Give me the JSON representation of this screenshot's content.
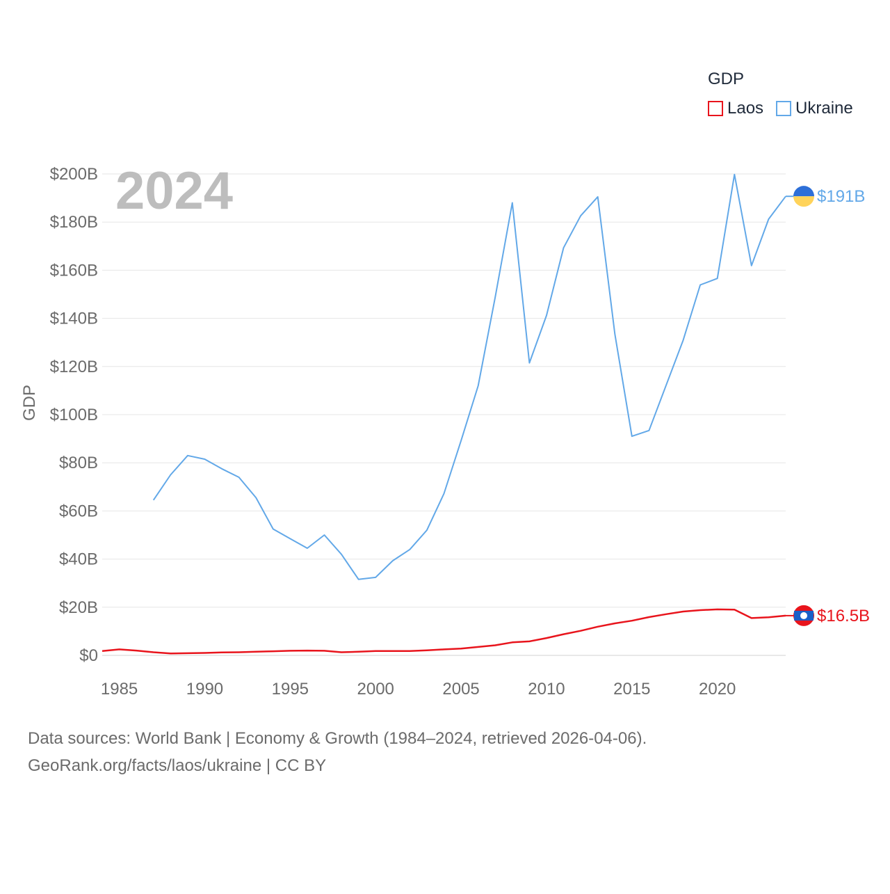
{
  "chart_data": {
    "type": "line",
    "title": "",
    "year_label": "2024",
    "ylabel": "GDP",
    "xlabel": "",
    "ylim": [
      0,
      200
    ],
    "xlim": [
      1984,
      2024
    ],
    "y_ticks": [
      0,
      20,
      40,
      60,
      80,
      100,
      120,
      140,
      160,
      180,
      200
    ],
    "y_tick_labels": [
      "$0",
      "$20B",
      "$40B",
      "$60B",
      "$80B",
      "$100B",
      "$120B",
      "$140B",
      "$160B",
      "$180B",
      "$200B"
    ],
    "x_ticks": [
      1985,
      1990,
      1995,
      2000,
      2005,
      2010,
      2015,
      2020
    ],
    "x_tick_labels": [
      "1985",
      "1990",
      "1995",
      "2000",
      "2005",
      "2010",
      "2015",
      "2020"
    ],
    "legend": {
      "title": "GDP",
      "placement": "top-right"
    },
    "series": [
      {
        "name": "Laos",
        "color": "#e8141c",
        "end_label": "$16.5B",
        "flag": "laos-flag-icon",
        "x": [
          1984,
          1985,
          1986,
          1987,
          1988,
          1989,
          1990,
          1991,
          1992,
          1993,
          1994,
          1995,
          1996,
          1997,
          1998,
          1999,
          2000,
          2001,
          2002,
          2003,
          2004,
          2005,
          2006,
          2007,
          2008,
          2009,
          2010,
          2011,
          2012,
          2013,
          2014,
          2015,
          2016,
          2017,
          2018,
          2019,
          2020,
          2021,
          2022,
          2023,
          2024
        ],
        "values": [
          1.8,
          2.5,
          2.0,
          1.3,
          0.8,
          0.9,
          1.0,
          1.2,
          1.3,
          1.5,
          1.7,
          1.9,
          2.0,
          1.9,
          1.3,
          1.5,
          1.8,
          1.8,
          1.8,
          2.1,
          2.5,
          2.8,
          3.5,
          4.2,
          5.4,
          5.8,
          7.2,
          8.8,
          10.2,
          11.9,
          13.3,
          14.4,
          15.9,
          17.1,
          18.2,
          18.8,
          19.1,
          19.0,
          15.5,
          15.8,
          16.5
        ]
      },
      {
        "name": "Ukraine",
        "color": "#62a8e8",
        "end_label": "$191B",
        "flag": "ukraine-flag-icon",
        "x": [
          1987,
          1988,
          1989,
          1990,
          1991,
          1992,
          1993,
          1994,
          1995,
          1996,
          1997,
          1998,
          1999,
          2000,
          2001,
          2002,
          2003,
          2004,
          2005,
          2006,
          2007,
          2008,
          2009,
          2010,
          2011,
          2012,
          2013,
          2014,
          2015,
          2016,
          2017,
          2018,
          2019,
          2020,
          2021,
          2022,
          2023,
          2024
        ],
        "values": [
          64.5,
          75,
          83,
          81.5,
          77.5,
          74,
          65.5,
          52.5,
          48.5,
          44.5,
          50,
          42,
          31.6,
          32.4,
          39.3,
          44,
          52,
          67.2,
          89.2,
          112,
          148.8,
          188,
          121.5,
          141.2,
          169.3,
          182.6,
          190.5,
          133.5,
          91,
          93.4,
          112.2,
          130.9,
          153.9,
          156.6,
          199.8,
          161.9,
          181.2,
          190.7
        ]
      }
    ]
  },
  "footer": {
    "line1": "Data sources: World Bank | Economy & Growth (1984–2024, retrieved 2026-04-06).",
    "line2": "GeoRank.org/facts/laos/ukraine | CC BY"
  }
}
